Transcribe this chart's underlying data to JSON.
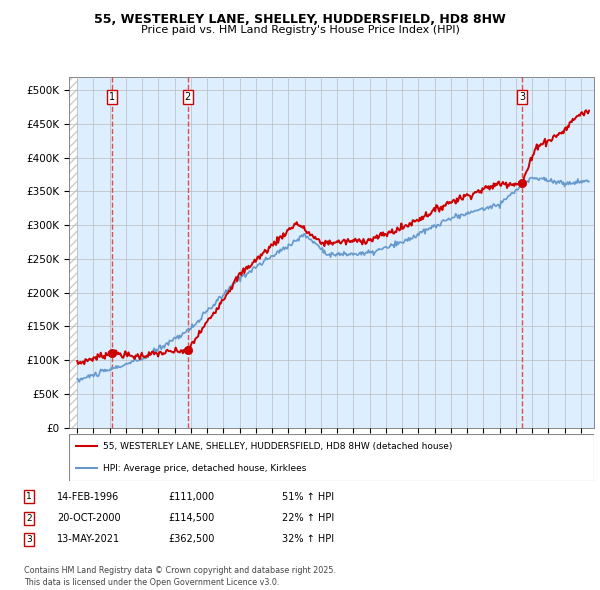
{
  "title": "55, WESTERLEY LANE, SHELLEY, HUDDERSFIELD, HD8 8HW",
  "subtitle": "Price paid vs. HM Land Registry's House Price Index (HPI)",
  "ylabel_ticks": [
    "£0",
    "£50K",
    "£100K",
    "£150K",
    "£200K",
    "£250K",
    "£300K",
    "£350K",
    "£400K",
    "£450K",
    "£500K"
  ],
  "ytick_vals": [
    0,
    50000,
    100000,
    150000,
    200000,
    250000,
    300000,
    350000,
    400000,
    450000,
    500000
  ],
  "ylim": [
    0,
    520000
  ],
  "xlim_start": 1993.5,
  "xlim_end": 2025.8,
  "sales": [
    {
      "num": 1,
      "date": "14-FEB-1996",
      "year": 1996.12,
      "price": 111000,
      "hpi_pct": "51% ↑ HPI"
    },
    {
      "num": 2,
      "date": "20-OCT-2000",
      "year": 2000.8,
      "price": 114500,
      "hpi_pct": "22% ↑ HPI"
    },
    {
      "num": 3,
      "date": "13-MAY-2021",
      "year": 2021.37,
      "price": 362500,
      "hpi_pct": "32% ↑ HPI"
    }
  ],
  "legend_line1": "55, WESTERLEY LANE, SHELLEY, HUDDERSFIELD, HD8 8HW (detached house)",
  "legend_line2": "HPI: Average price, detached house, Kirklees",
  "footer": "Contains HM Land Registry data © Crown copyright and database right 2025.\nThis data is licensed under the Open Government Licence v3.0.",
  "price_line_color": "#cc0000",
  "hpi_line_color": "#6699cc",
  "sale_marker_color": "#cc0000",
  "vline_color": "#dd3333",
  "bg_plot_color": "#ddeeff",
  "grid_color": "#bbbbbb"
}
